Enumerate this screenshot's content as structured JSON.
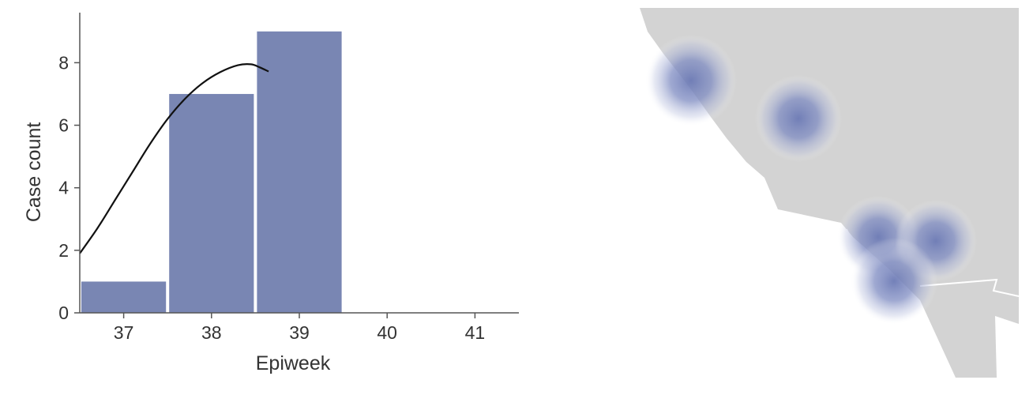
{
  "chart_data": {
    "type": "bar",
    "xlabel": "Epiweek",
    "ylabel": "Case count",
    "categories": [
      "37",
      "38",
      "39",
      "40",
      "41"
    ],
    "values": [
      1,
      7,
      9,
      0,
      0
    ],
    "xlim": [
      36.5,
      41.5
    ],
    "ylim": [
      0,
      9.5
    ],
    "yticks": [
      "0",
      "2",
      "4",
      "6",
      "8"
    ],
    "bar_color": "#7986b3",
    "grid": false,
    "legend": "none",
    "trend_curve": {
      "color": "#111111",
      "points": [
        [
          36.5,
          1.9
        ],
        [
          36.7,
          2.7
        ],
        [
          36.9,
          3.6
        ],
        [
          37.1,
          4.5
        ],
        [
          37.3,
          5.4
        ],
        [
          37.5,
          6.2
        ],
        [
          37.7,
          6.85
        ],
        [
          37.9,
          7.35
        ],
        [
          38.1,
          7.7
        ],
        [
          38.3,
          7.92
        ],
        [
          38.45,
          7.95
        ],
        [
          38.55,
          7.85
        ],
        [
          38.65,
          7.72
        ]
      ]
    }
  },
  "map": {
    "land_color": "#d3d3d3",
    "hotspot_color": "#6c7ab5"
  }
}
